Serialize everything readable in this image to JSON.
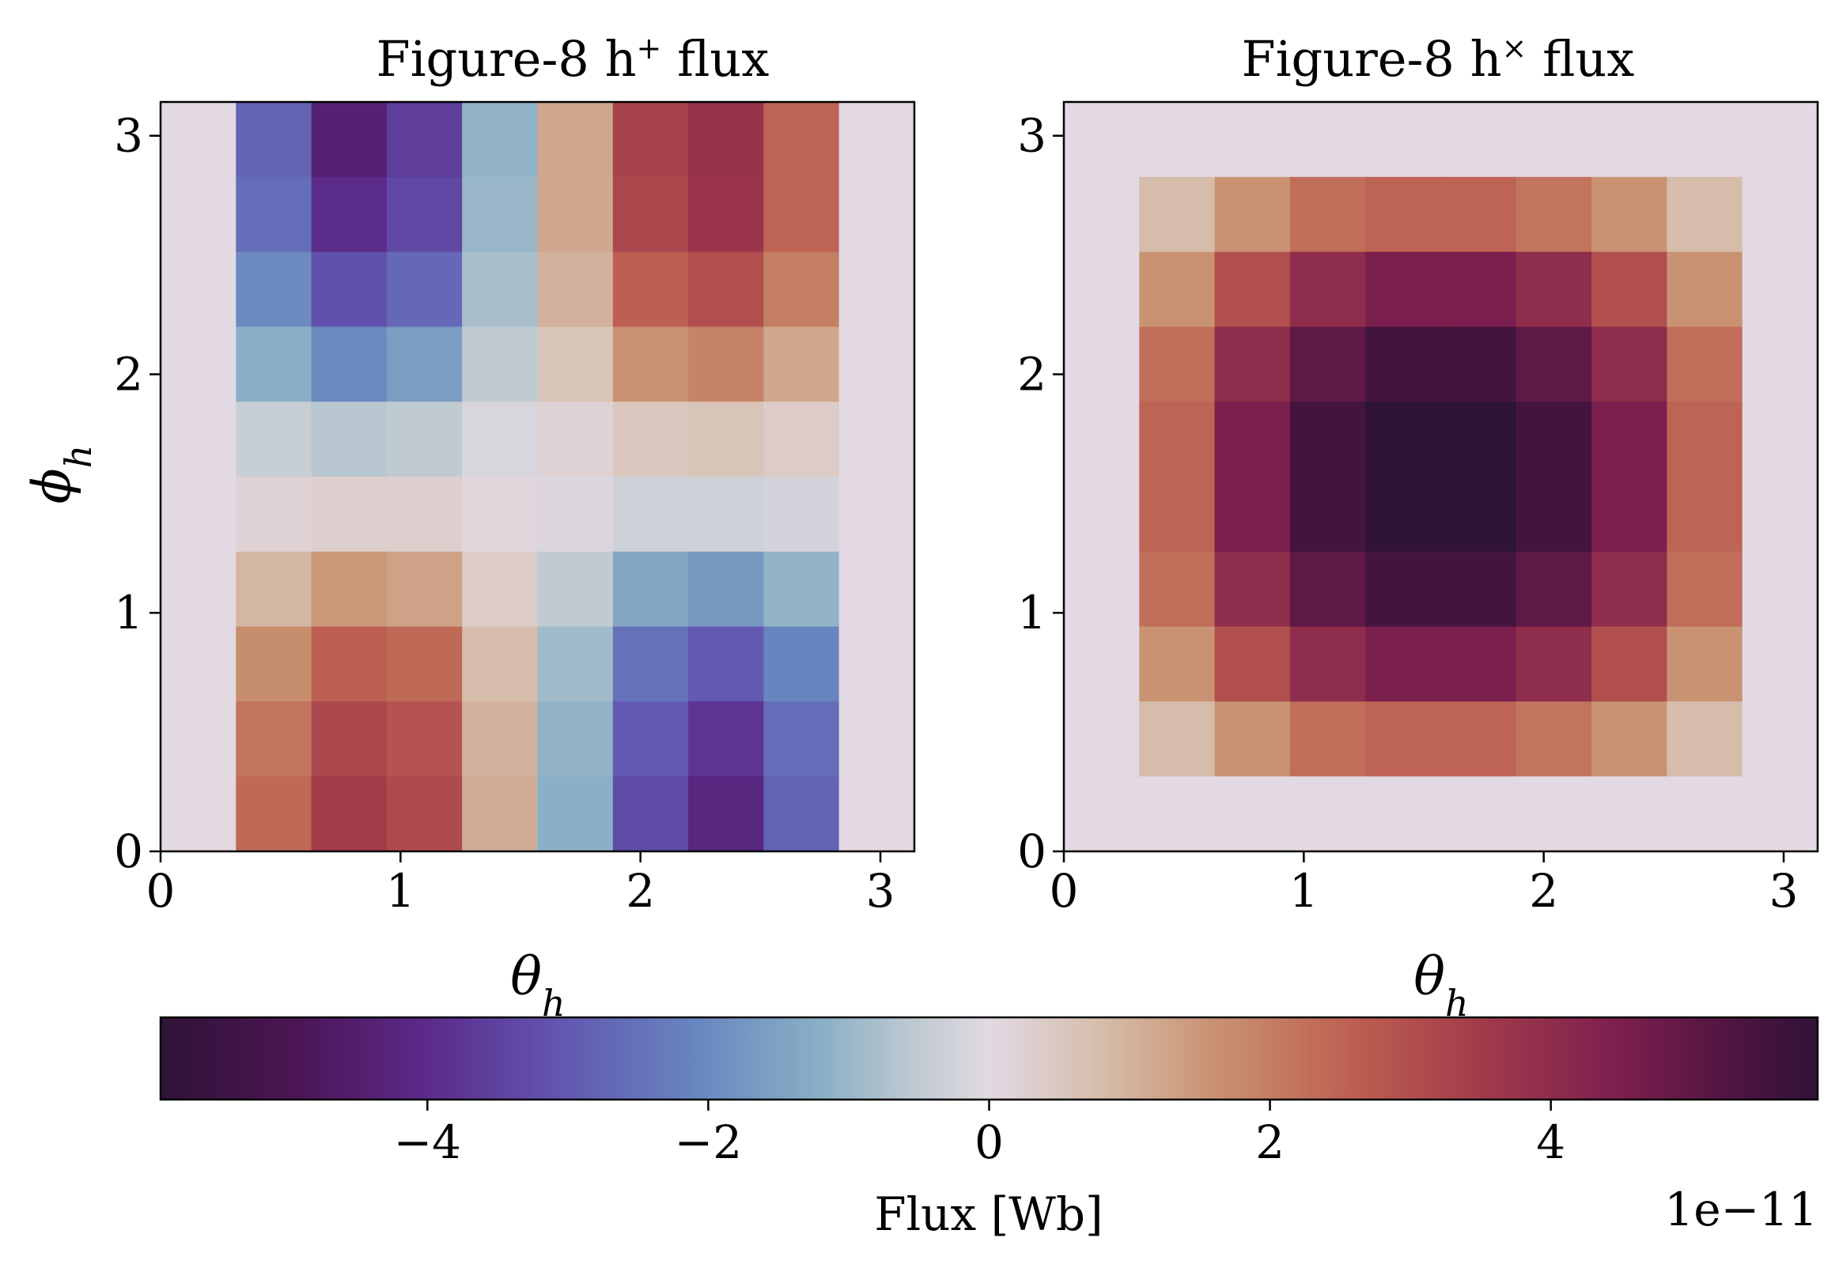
{
  "chart_data": [
    {
      "type": "heatmap",
      "title": "Figure-8 h",
      "title_sup": "+",
      "title_suffix": " flux",
      "xlabel": "θ",
      "xlabel_sub": "h",
      "ylabel": "ϕ",
      "ylabel_sub": "h",
      "xlim": [
        0,
        3.14159
      ],
      "ylim": [
        0,
        3.14159
      ],
      "xticks": [
        0,
        1,
        2,
        3
      ],
      "yticks": [
        0,
        1,
        2,
        3
      ],
      "grid_size": [
        10,
        10
      ],
      "z_row_order": "top-to-bottom (phi high to low), columns theta low to high",
      "z": [
        [
          0,
          -2.8,
          -4.4,
          -3.6,
          -1.1,
          1.2,
          3.3,
          3.8,
          2.5,
          0
        ],
        [
          0,
          -2.6,
          -4.0,
          -3.4,
          -1.0,
          1.2,
          3.2,
          3.7,
          2.5,
          0
        ],
        [
          0,
          -2.0,
          -3.2,
          -2.7,
          -0.8,
          1.0,
          2.6,
          3.0,
          2.0,
          0
        ],
        [
          0,
          -1.2,
          -2.0,
          -1.6,
          -0.5,
          0.6,
          1.6,
          1.9,
          1.2,
          0
        ],
        [
          0,
          -0.4,
          -0.6,
          -0.5,
          -0.15,
          0.2,
          0.5,
          0.6,
          0.4,
          0
        ],
        [
          0,
          0.2,
          0.3,
          0.3,
          0.1,
          -0.1,
          -0.3,
          -0.3,
          -0.2,
          0
        ],
        [
          0,
          0.9,
          1.5,
          1.3,
          0.4,
          -0.5,
          -1.4,
          -1.7,
          -1.1,
          0
        ],
        [
          0,
          1.7,
          2.6,
          2.4,
          0.8,
          -0.9,
          -2.5,
          -3.0,
          -2.1,
          0
        ],
        [
          0,
          2.2,
          3.2,
          2.9,
          1.0,
          -1.1,
          -3.0,
          -3.8,
          -2.6,
          0
        ],
        [
          0,
          2.4,
          3.5,
          3.1,
          1.1,
          -1.2,
          -3.3,
          -4.2,
          -2.8,
          0
        ]
      ]
    },
    {
      "type": "heatmap",
      "title": "Figure-8 h",
      "title_sup": "×",
      "title_suffix": " flux",
      "xlabel": "θ",
      "xlabel_sub": "h",
      "ylabel": "",
      "xlim": [
        0,
        3.14159
      ],
      "ylim": [
        0,
        3.14159
      ],
      "xticks": [
        0,
        1,
        2,
        3
      ],
      "yticks": [
        0,
        1,
        2,
        3
      ],
      "grid_size": [
        10,
        10
      ],
      "z_row_order": "top-to-bottom (phi high to low), columns theta low to high",
      "z": [
        [
          0,
          0,
          0,
          0,
          0,
          0,
          0,
          0,
          0,
          0
        ],
        [
          0,
          0.8,
          1.6,
          2.3,
          2.5,
          2.5,
          2.2,
          1.6,
          0.8,
          0
        ],
        [
          0,
          1.6,
          3.0,
          4.0,
          4.5,
          4.5,
          4.0,
          3.0,
          1.6,
          0
        ],
        [
          0,
          2.3,
          4.0,
          5.0,
          5.5,
          5.5,
          5.0,
          4.0,
          2.3,
          0
        ],
        [
          0,
          2.5,
          4.5,
          5.5,
          5.9,
          5.9,
          5.5,
          4.5,
          2.5,
          0
        ],
        [
          0,
          2.5,
          4.5,
          5.5,
          5.9,
          5.9,
          5.5,
          4.5,
          2.5,
          0
        ],
        [
          0,
          2.3,
          4.0,
          5.0,
          5.5,
          5.5,
          5.0,
          4.0,
          2.3,
          0
        ],
        [
          0,
          1.6,
          3.0,
          4.0,
          4.5,
          4.5,
          4.0,
          3.0,
          1.6,
          0
        ],
        [
          0,
          0.8,
          1.6,
          2.3,
          2.5,
          2.5,
          2.2,
          1.6,
          0.8,
          0
        ],
        [
          0,
          0,
          0,
          0,
          0,
          0,
          0,
          0,
          0,
          0
        ]
      ]
    }
  ],
  "colorbar": {
    "label": "Flux [Wb]",
    "scale_label": "1e−11",
    "range": [
      -5.9,
      5.9
    ],
    "ticks": [
      -4,
      -2,
      0,
      2,
      4
    ],
    "tick_labels": [
      "−4",
      "−2",
      "0",
      "2",
      "4"
    ],
    "colormap": "twilight_shifted",
    "stops": [
      {
        "t": 0.0,
        "color": "#2f1436"
      },
      {
        "t": 0.08,
        "color": "#4b1553"
      },
      {
        "t": 0.16,
        "color": "#5b2a8a"
      },
      {
        "t": 0.24,
        "color": "#6256b0"
      },
      {
        "t": 0.32,
        "color": "#6784bf"
      },
      {
        "t": 0.4,
        "color": "#8cb0c6"
      },
      {
        "t": 0.46,
        "color": "#c2ccd1"
      },
      {
        "t": 0.5,
        "color": "#e2d9e2"
      },
      {
        "t": 0.56,
        "color": "#d7c1b0"
      },
      {
        "t": 0.64,
        "color": "#c8906f"
      },
      {
        "t": 0.72,
        "color": "#bd5f51"
      },
      {
        "t": 0.8,
        "color": "#a03a4b"
      },
      {
        "t": 0.88,
        "color": "#7c1f4e"
      },
      {
        "t": 0.95,
        "color": "#4d1540"
      },
      {
        "t": 1.0,
        "color": "#2f1436"
      }
    ]
  }
}
